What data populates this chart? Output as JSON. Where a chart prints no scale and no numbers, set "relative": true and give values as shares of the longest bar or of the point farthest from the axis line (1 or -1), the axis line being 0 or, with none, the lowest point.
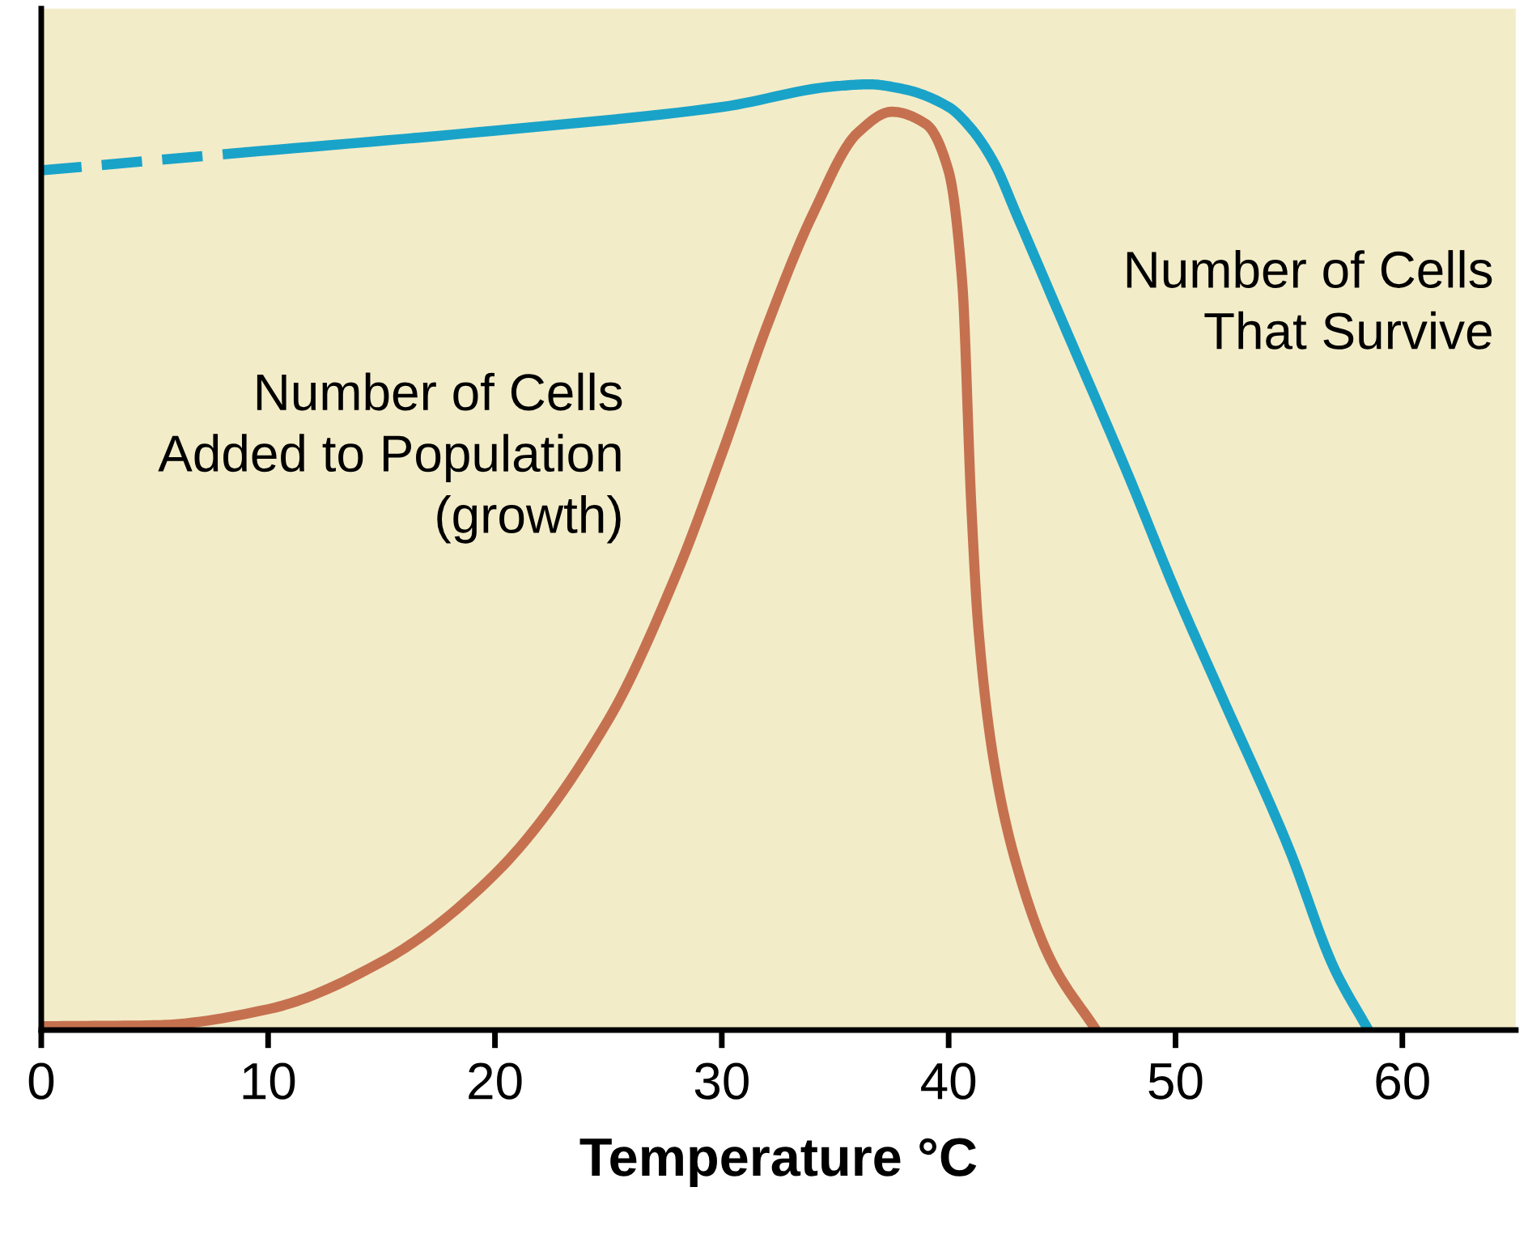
{
  "chart_data": {
    "type": "line",
    "xlabel": "Temperature °C",
    "relative": true,
    "xlim": [
      0,
      65
    ],
    "xticks": [
      0,
      10,
      20,
      30,
      40,
      50,
      60
    ],
    "grid": false,
    "legend": false,
    "marker": "none",
    "series": [
      {
        "color": "#1aa3c8",
        "line_style": "dashed",
        "x": [
          0,
          8
        ],
        "values": [
          0.909,
          0.926
        ]
      },
      {
        "name": "Number of Cells\nThat Survive",
        "color": "#1aa3c8",
        "line_style": "solid",
        "x": [
          8,
          20,
          30,
          35,
          36.5,
          38,
          40,
          41,
          42,
          43,
          45,
          48,
          50,
          52,
          55,
          57,
          58.5
        ],
        "values": [
          0.926,
          0.951,
          0.976,
          0.998,
          1,
          0.995,
          0.976,
          0.953,
          0.917,
          0.862,
          0.75,
          0.582,
          0.464,
          0.355,
          0.192,
          0.065,
          0
        ]
      },
      {
        "name": "Number of Cells\nAdded to Population\n(growth)",
        "color": "#c5714f",
        "line_style": "solid",
        "x": [
          0,
          5,
          10,
          15,
          20,
          25,
          28,
          30,
          32,
          34,
          36,
          37.5,
          39,
          40,
          40.6,
          41,
          41.3,
          42,
          43,
          44.5,
          46.5
        ],
        "values": [
          0.004,
          0.005,
          0.022,
          0.072,
          0.165,
          0.328,
          0.482,
          0.609,
          0.745,
          0.862,
          0.949,
          0.971,
          0.958,
          0.908,
          0.79,
          0.554,
          0.428,
          0.283,
          0.174,
          0.074,
          0
        ]
      }
    ]
  }
}
